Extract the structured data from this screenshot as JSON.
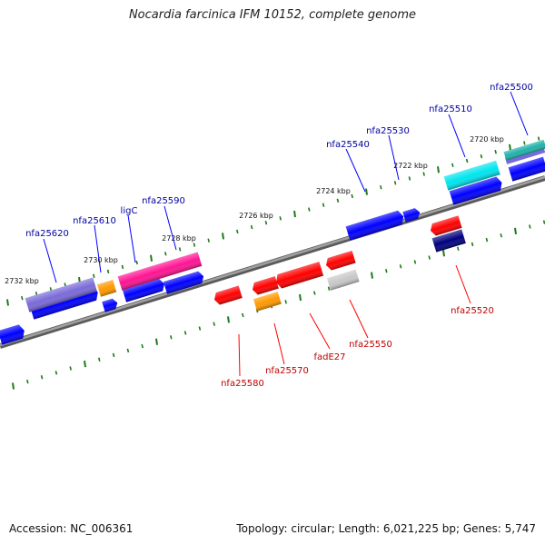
{
  "title": "Nocardia farcinica IFM 10152, complete genome",
  "footer": {
    "accession": "Accession: NC_006361",
    "stats": "Topology: circular; Length: 6,021,225 bp; Genes: 5,747"
  },
  "colors": {
    "backbone": "#808080",
    "tick": "#1a7a1a",
    "label_forward": "#0000a0",
    "label_reverse": "#c00000"
  },
  "kbp_labels": [
    "2732 kbp",
    "2730 kbp",
    "2728 kbp",
    "2726 kbp",
    "2724 kbp",
    "2722 kbp",
    "2720 kbp"
  ],
  "genes_forward": [
    {
      "label": "nfa25620",
      "color": "#7a6ad8"
    },
    {
      "label": "nfa25610",
      "color": "#ff9900"
    },
    {
      "label": "ligC",
      "color": "#ff1493"
    },
    {
      "label": "nfa25590",
      "color": "#0000ff"
    },
    {
      "label": "nfa25540",
      "color": "#0000ff"
    },
    {
      "label": "nfa25530",
      "color": "#0000ff"
    },
    {
      "label": "nfa25510",
      "color": "#00e5ee"
    },
    {
      "label": "nfa25500",
      "color": "#20b2aa"
    }
  ],
  "genes_reverse": [
    {
      "label": "nfa25580",
      "color": "#ff0000"
    },
    {
      "label": "nfa25570",
      "color": "#ff9900"
    },
    {
      "label": "fadE27",
      "color": "#ff0000"
    },
    {
      "label": "nfa25550",
      "color": "#c8c8c8"
    },
    {
      "label": "nfa25520",
      "color": "#ff0000"
    }
  ]
}
